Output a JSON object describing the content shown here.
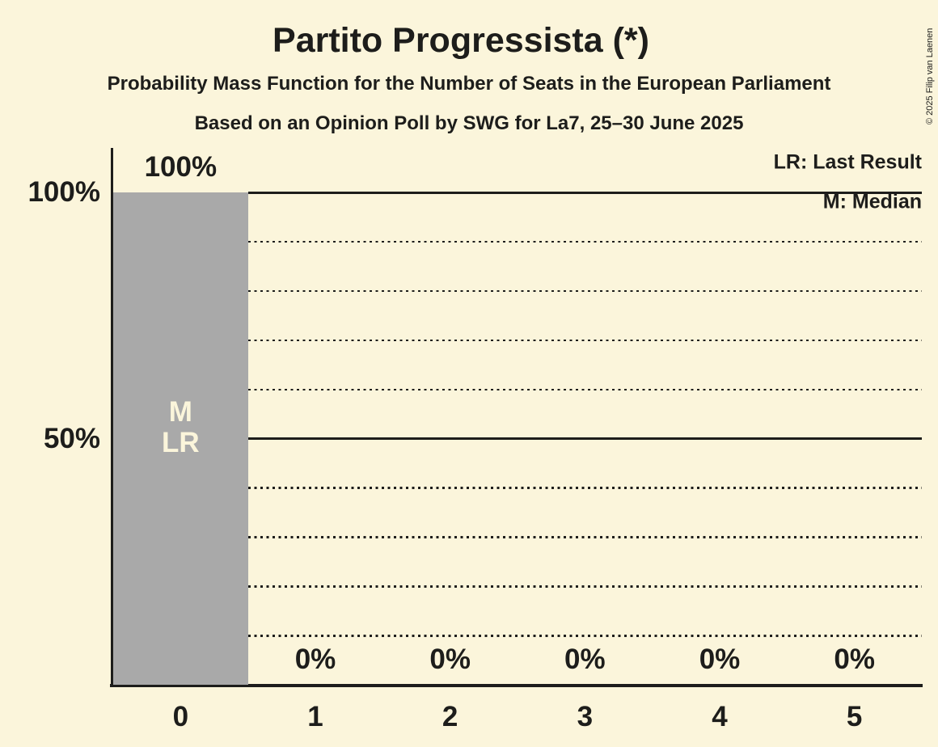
{
  "page": {
    "background": "#FBF5DB",
    "text_color": "#1D1D1B"
  },
  "header": {
    "title": "Partito Progressista (*)",
    "subtitle": "Probability Mass Function for the Number of Seats in the European Parliament",
    "source_line": "Based on an Opinion Poll by SWG for La7, 25–30 June 2025"
  },
  "legend": {
    "last_result": "LR: Last Result",
    "median": "M: Median"
  },
  "copyright": "© 2025 Filip van Laenen",
  "chart_data": {
    "type": "bar",
    "title": "Partito Progressista (*)",
    "subtitle": "Probability Mass Function for the Number of Seats in the European Parliament",
    "source_line": "Based on an Opinion Poll by SWG for La7, 25–30 June 2025",
    "categories": [
      "0",
      "1",
      "2",
      "3",
      "4",
      "5"
    ],
    "values": [
      100,
      0,
      0,
      0,
      0,
      0
    ],
    "value_labels": [
      "100%",
      "0%",
      "0%",
      "0%",
      "0%",
      "0%"
    ],
    "bar_markers": {
      "0": [
        "M",
        "LR"
      ]
    },
    "ylim": [
      0,
      100
    ],
    "ytick_labels": [
      {
        "value": 100,
        "label": "100%"
      },
      {
        "value": 50,
        "label": "50%"
      }
    ],
    "solid_gridlines": [
      100,
      50
    ],
    "dotted_gridlines": [
      90,
      80,
      70,
      60,
      40,
      30,
      20,
      10
    ],
    "legend_entries": [
      "LR: Last Result",
      "M: Median"
    ],
    "legend_position": "top-right",
    "grid": "horizontal only",
    "colors": {
      "background": "#FBF5DB",
      "bar": "#A9A9A9",
      "bar_marker_text": "#FBF5DB",
      "text": "#1D1D1B"
    }
  }
}
